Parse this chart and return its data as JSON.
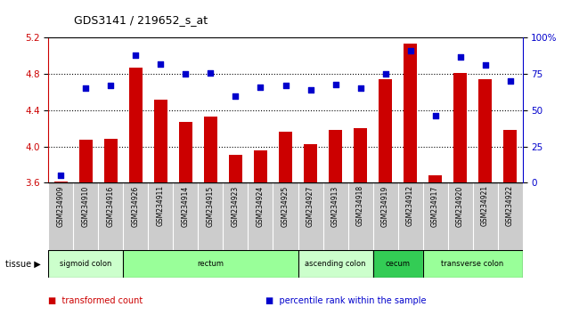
{
  "title": "GDS3141 / 219652_s_at",
  "samples": [
    "GSM234909",
    "GSM234910",
    "GSM234916",
    "GSM234926",
    "GSM234911",
    "GSM234914",
    "GSM234915",
    "GSM234923",
    "GSM234924",
    "GSM234925",
    "GSM234927",
    "GSM234913",
    "GSM234918",
    "GSM234919",
    "GSM234912",
    "GSM234917",
    "GSM234920",
    "GSM234921",
    "GSM234922"
  ],
  "bar_values": [
    3.61,
    4.07,
    4.08,
    4.87,
    4.52,
    4.27,
    4.33,
    3.91,
    3.96,
    4.16,
    4.03,
    4.18,
    4.2,
    4.74,
    5.14,
    3.68,
    4.81,
    4.74,
    4.18
  ],
  "dot_percentile": [
    5,
    65,
    67,
    88,
    82,
    75,
    76,
    60,
    66,
    67,
    64,
    68,
    65,
    75,
    91,
    46,
    87,
    81,
    70
  ],
  "ylim_left": [
    3.6,
    5.2
  ],
  "ylim_right": [
    0,
    100
  ],
  "yticks_left": [
    3.6,
    4.0,
    4.4,
    4.8,
    5.2
  ],
  "yticks_right": [
    0,
    25,
    50,
    75,
    100
  ],
  "ytick_labels_right": [
    "0",
    "25",
    "50",
    "75",
    "100%"
  ],
  "bar_color": "#CC0000",
  "dot_color": "#0000CC",
  "bar_bottom": 3.6,
  "tissue_groups": [
    {
      "label": "sigmoid colon",
      "start": 0,
      "end": 3,
      "color": "#ccffcc"
    },
    {
      "label": "rectum",
      "start": 3,
      "end": 10,
      "color": "#99ff99"
    },
    {
      "label": "ascending colon",
      "start": 10,
      "end": 13,
      "color": "#ccffcc"
    },
    {
      "label": "cecum",
      "start": 13,
      "end": 15,
      "color": "#33cc55"
    },
    {
      "label": "transverse colon",
      "start": 15,
      "end": 19,
      "color": "#99ff99"
    }
  ],
  "legend_items": [
    {
      "label": "transformed count",
      "color": "#CC0000"
    },
    {
      "label": "percentile rank within the sample",
      "color": "#0000CC"
    }
  ]
}
